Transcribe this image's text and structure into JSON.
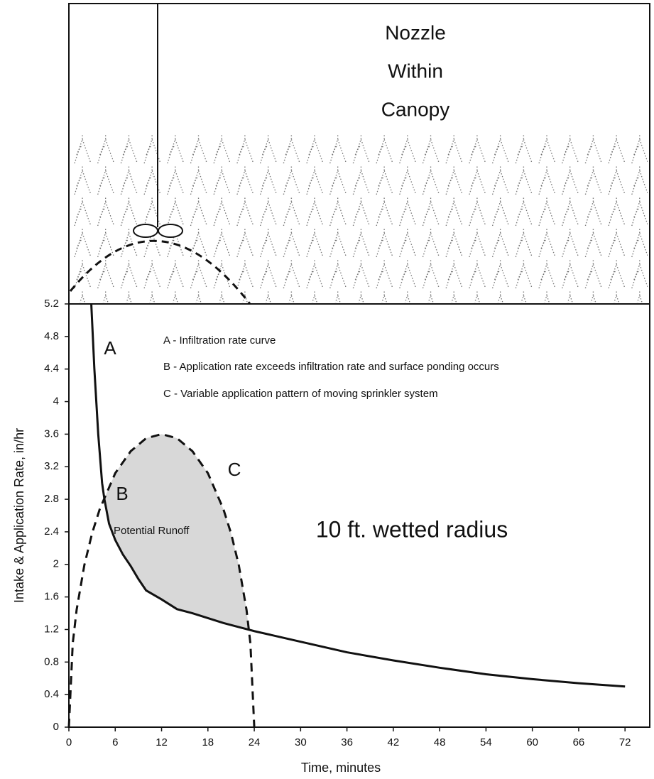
{
  "diagram": {
    "label_lines": [
      "Nozzle",
      "Within",
      "Canopy"
    ]
  },
  "chart_data": {
    "type": "line",
    "x_label": "Time, minutes",
    "y_label": "Intake & Application Rate, in/hr",
    "xlim": [
      0,
      75.2
    ],
    "ylim": [
      0,
      5.2
    ],
    "xticks": [
      0,
      6,
      12,
      18,
      24,
      30,
      36,
      42,
      48,
      54,
      60,
      66,
      72
    ],
    "yticks": [
      0,
      0.4,
      0.8,
      1.2,
      1.6,
      2,
      2.4,
      2.8,
      3.2,
      3.6,
      4,
      4.4,
      4.8,
      5.2
    ],
    "series": [
      {
        "name": "A",
        "color": "#111111",
        "style": "solid",
        "x": [
          2.9,
          3.3,
          3.8,
          4.3,
          4.6,
          5.2,
          6,
          7,
          8,
          9,
          10,
          12,
          14,
          16,
          18,
          20,
          22,
          24,
          30,
          36,
          42,
          48,
          54,
          60,
          66,
          72
        ],
        "values": [
          5.2,
          4.4,
          3.6,
          3.0,
          2.8,
          2.5,
          2.3,
          2.12,
          1.98,
          1.82,
          1.68,
          1.57,
          1.45,
          1.4,
          1.34,
          1.28,
          1.23,
          1.18,
          1.05,
          0.92,
          0.82,
          0.73,
          0.65,
          0.59,
          0.54,
          0.5
        ]
      },
      {
        "name": "C",
        "color": "#111111",
        "style": "dashed",
        "x": [
          0,
          0.5,
          1,
          2,
          3,
          4,
          6,
          8,
          10,
          12,
          14,
          16,
          18,
          20,
          21,
          22,
          23,
          23.5,
          24
        ],
        "values": [
          0,
          1.03,
          1.44,
          1.99,
          2.38,
          2.68,
          3.12,
          3.39,
          3.55,
          3.6,
          3.55,
          3.39,
          3.12,
          2.68,
          2.38,
          1.99,
          1.44,
          1.03,
          0
        ]
      }
    ],
    "annotations": [
      "B",
      "Potential Runoff",
      "10 ft. wetted radius",
      "A - Infiltration rate curve",
      "B - Application rate exceeds infiltration rate and surface ponding occurs",
      "C - Variable application pattern of moving sprinkler system"
    ],
    "shade_color": "#d8d8d8"
  }
}
